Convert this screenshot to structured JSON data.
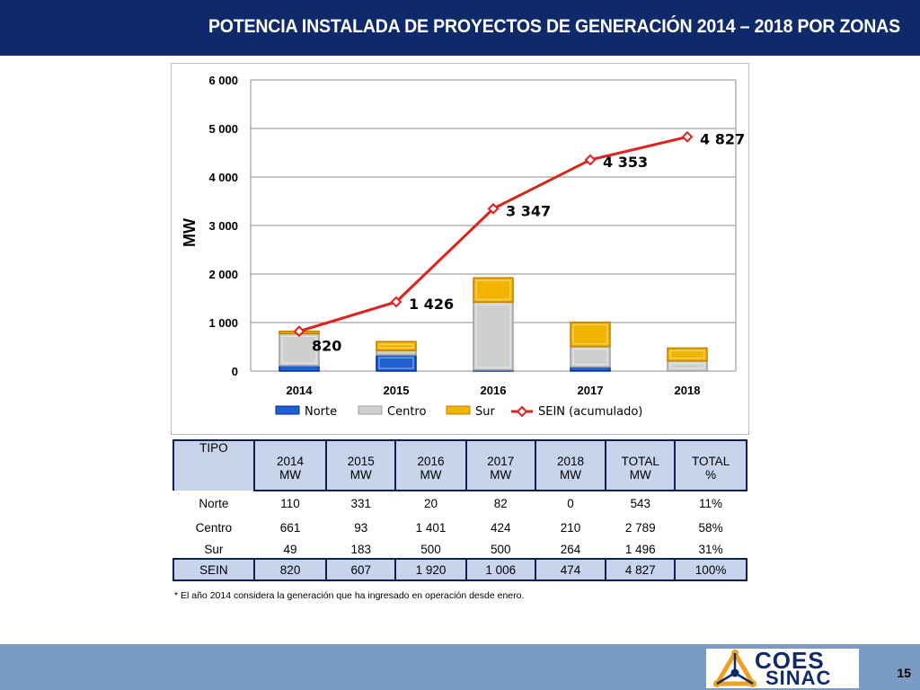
{
  "header": {
    "title": "POTENCIA INSTALADA DE PROYECTOS DE GENERACIÓN 2014 – 2018 POR ZONAS"
  },
  "chart_data": {
    "type": "bar",
    "stacked": true,
    "categories": [
      "2014",
      "2015",
      "2016",
      "2017",
      "2018"
    ],
    "series": [
      {
        "name": "Norte",
        "values": [
          110,
          331,
          20,
          82,
          0
        ],
        "color": "#1f5fd0"
      },
      {
        "name": "Centro",
        "values": [
          661,
          93,
          1401,
          424,
          210
        ],
        "color": "#cfcfcf"
      },
      {
        "name": "Sur",
        "values": [
          49,
          183,
          500,
          500,
          264
        ],
        "color": "#f2b400"
      }
    ],
    "line_series": {
      "name": "SEIN (acumulado)",
      "type": "line",
      "values": [
        820,
        1426,
        3347,
        4353,
        4827
      ],
      "data_labels": [
        "820",
        "1 426",
        "3 347",
        "4 353",
        "4 827"
      ],
      "color": "#e0211d"
    },
    "ylabel": "MW",
    "ylim": [
      0,
      6000
    ],
    "yticks": [
      0,
      1000,
      2000,
      3000,
      4000,
      5000,
      6000
    ],
    "ytick_labels": [
      "0",
      "1 000",
      "2 000",
      "3 000",
      "4 000",
      "5 000",
      "6 000"
    ],
    "grid": true,
    "legend_position": "bottom"
  },
  "table": {
    "tipo_header": "TIPO",
    "columns": [
      {
        "top": "2014",
        "bottom": "MW"
      },
      {
        "top": "2015",
        "bottom": "MW"
      },
      {
        "top": "2016",
        "bottom": "MW"
      },
      {
        "top": "2017",
        "bottom": "MW"
      },
      {
        "top": "2018",
        "bottom": "MW"
      },
      {
        "top": "TOTAL",
        "bottom": "MW"
      },
      {
        "top": "TOTAL",
        "bottom": "%"
      }
    ],
    "rows": [
      {
        "label": "Norte",
        "cells": [
          "110",
          "331",
          "20",
          "82",
          "0",
          "543",
          "11%"
        ]
      },
      {
        "label": "Centro",
        "cells": [
          "661",
          "93",
          "1 401",
          "424",
          "210",
          "2 789",
          "58%"
        ]
      },
      {
        "label": "Sur",
        "cells": [
          "49",
          "183",
          "500",
          "500",
          "264",
          "1 496",
          "31%"
        ]
      }
    ],
    "total_row": {
      "label": "SEIN",
      "cells": [
        "820",
        "607",
        "1 920",
        "1 006",
        "474",
        "4 827",
        "100%"
      ]
    }
  },
  "footnote": "* El año 2014 considera la generación que ha ingresado en operación desde enero.",
  "logo": {
    "line1": "COES",
    "line2": "SINAC"
  },
  "page_number": "15",
  "colors": {
    "title_bar": "#0f2a6b",
    "bottom_bar": "#7a9bc6",
    "table_header": "#c8d4ec"
  }
}
